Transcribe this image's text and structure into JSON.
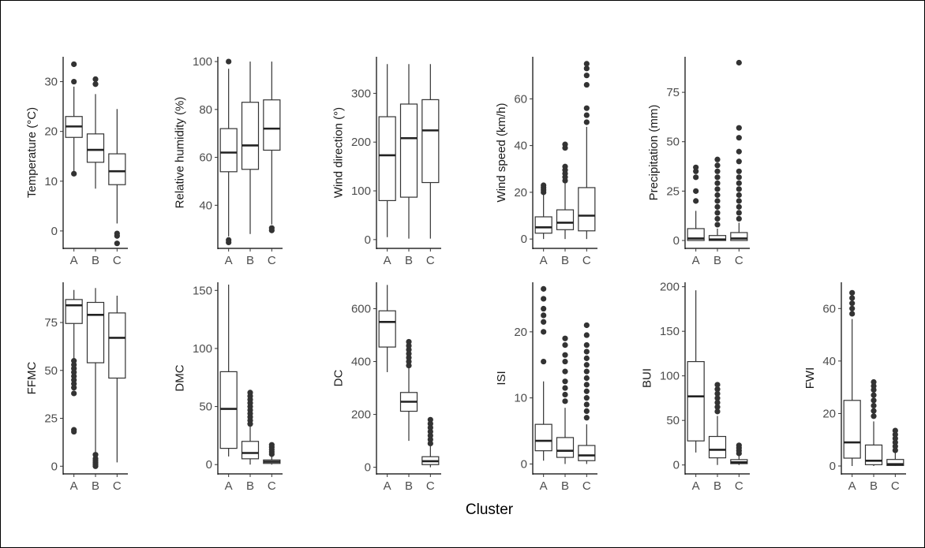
{
  "chart_data": {
    "type": "box",
    "xlabel": "Cluster",
    "categories": [
      "A",
      "B",
      "C"
    ],
    "panels": [
      {
        "ylabel": "Temperature (°C)",
        "yticks": [
          0,
          10,
          20,
          30
        ],
        "ylim": [
          -3.5,
          35
        ],
        "boxes": [
          {
            "q1": 18.8,
            "median": 21.0,
            "q3": 23.0,
            "lo": 11.5,
            "hi": 29.0,
            "outliers": [
              30.0,
              33.5,
              11.5
            ]
          },
          {
            "q1": 13.8,
            "median": 16.3,
            "q3": 19.5,
            "lo": 8.5,
            "hi": 27.5,
            "outliers": [
              29.5,
              30.5
            ]
          },
          {
            "q1": 9.3,
            "median": 12.0,
            "q3": 15.5,
            "lo": 1.5,
            "hi": 24.5,
            "outliers": [
              -0.5,
              -1.0,
              -2.5
            ]
          }
        ]
      },
      {
        "ylabel": "Relative humidity (%)",
        "yticks": [
          40,
          60,
          80,
          100
        ],
        "ylim": [
          22,
          102
        ],
        "boxes": [
          {
            "q1": 54,
            "median": 62,
            "q3": 72,
            "lo": 27,
            "hi": 97,
            "outliers": [
              24.5,
              25.5,
              100
            ]
          },
          {
            "q1": 55,
            "median": 65,
            "q3": 83,
            "lo": 28,
            "hi": 100,
            "outliers": []
          },
          {
            "q1": 63,
            "median": 72,
            "q3": 84,
            "lo": 32,
            "hi": 100,
            "outliers": [
              29.5,
              30.5
            ]
          }
        ]
      },
      {
        "ylabel": "Wind direction (°)",
        "yticks": [
          0,
          100,
          200,
          300
        ],
        "ylim": [
          -18,
          375
        ],
        "boxes": [
          {
            "q1": 80,
            "median": 173,
            "q3": 252,
            "lo": 5,
            "hi": 360,
            "outliers": []
          },
          {
            "q1": 87,
            "median": 208,
            "q3": 278,
            "lo": 2,
            "hi": 360,
            "outliers": []
          },
          {
            "q1": 117,
            "median": 224,
            "q3": 287,
            "lo": 2,
            "hi": 360,
            "outliers": []
          }
        ]
      },
      {
        "ylabel": "Wind speed (km/h)",
        "yticks": [
          0,
          20,
          40,
          60
        ],
        "ylim": [
          -4,
          78
        ],
        "boxes": [
          {
            "q1": 2.5,
            "median": 5,
            "q3": 9.5,
            "lo": 0,
            "hi": 19,
            "outliers": [
              20,
              21,
              22,
              23
            ]
          },
          {
            "q1": 4,
            "median": 7,
            "q3": 12.5,
            "lo": 0,
            "hi": 24,
            "outliers": [
              25,
              26.5,
              28,
              29.5,
              31,
              39,
              40.5
            ]
          },
          {
            "q1": 3.5,
            "median": 10,
            "q3": 22,
            "lo": 0,
            "hi": 48,
            "outliers": [
              50,
              53,
              56,
              66,
              70,
              73,
              75
            ]
          }
        ]
      },
      {
        "ylabel": "Precipitation (mm)",
        "yticks": [
          0,
          25,
          50,
          75
        ],
        "ylim": [
          -4,
          93
        ],
        "boxes": [
          {
            "q1": 0,
            "median": 1,
            "q3": 6,
            "lo": 0,
            "hi": 15,
            "outliers": [
              20,
              25,
              32,
              35,
              37
            ]
          },
          {
            "q1": 0,
            "median": 0.5,
            "q3": 2.5,
            "lo": 0,
            "hi": 6,
            "outliers": [
              8,
              11,
              14,
              17,
              20,
              23,
              26,
              29,
              32,
              35,
              38,
              41
            ]
          },
          {
            "q1": 0,
            "median": 1,
            "q3": 4,
            "lo": 0,
            "hi": 9,
            "outliers": [
              11,
              14,
              17,
              20,
              23,
              26,
              29,
              32,
              35,
              40,
              45,
              52,
              57,
              90
            ]
          }
        ]
      },
      {
        "ylabel": "FFMC",
        "yticks": [
          0,
          25,
          50,
          75
        ],
        "ylim": [
          -4,
          96
        ],
        "boxes": [
          {
            "q1": 74.5,
            "median": 84,
            "q3": 87,
            "lo": 56,
            "hi": 92,
            "outliers": [
              55,
              53,
              51,
              49,
              47,
              45,
              43,
              41,
              38,
              19,
              18
            ]
          },
          {
            "q1": 54,
            "median": 79,
            "q3": 85.5,
            "lo": 7,
            "hi": 93,
            "outliers": [
              6,
              4,
              3,
              2,
              1,
              0
            ]
          },
          {
            "q1": 46,
            "median": 67,
            "q3": 80,
            "lo": 2,
            "hi": 89,
            "outliers": []
          }
        ]
      },
      {
        "ylabel": "DMC",
        "yticks": [
          0,
          50,
          100,
          150
        ],
        "ylim": [
          -8,
          157
        ],
        "boxes": [
          {
            "q1": 14,
            "median": 48,
            "q3": 80,
            "lo": 7,
            "hi": 155,
            "outliers": []
          },
          {
            "q1": 5,
            "median": 10,
            "q3": 20,
            "lo": 0,
            "hi": 33,
            "outliers": [
              35,
              38,
              41,
              44,
              47,
              50,
              53,
              56,
              59,
              62
            ]
          },
          {
            "q1": 1,
            "median": 2.5,
            "q3": 4,
            "lo": 0,
            "hi": 8,
            "outliers": [
              9,
              11,
              13,
              15,
              17
            ]
          }
        ]
      },
      {
        "ylabel": "DC",
        "yticks": [
          0,
          200,
          400,
          600
        ],
        "ylim": [
          -25,
          700
        ],
        "boxes": [
          {
            "q1": 455,
            "median": 550,
            "q3": 592,
            "lo": 360,
            "hi": 690,
            "outliers": []
          },
          {
            "q1": 212,
            "median": 248,
            "q3": 283,
            "lo": 100,
            "hi": 375,
            "outliers": [
              385,
              400,
              415,
              430,
              445,
              460,
              475
            ]
          },
          {
            "q1": 10,
            "median": 23,
            "q3": 40,
            "lo": 0,
            "hi": 80,
            "outliers": [
              90,
              105,
              120,
              135,
              150,
              165,
              180
            ]
          }
        ]
      },
      {
        "ylabel": "ISI",
        "yticks": [
          0,
          10,
          20
        ],
        "ylim": [
          -1.5,
          27.5
        ],
        "boxes": [
          {
            "q1": 2,
            "median": 3.5,
            "q3": 6,
            "lo": 0.5,
            "hi": 12.5,
            "outliers": [
              15.5,
              20,
              21.5,
              22.5,
              23.5,
              25,
              26.5
            ]
          },
          {
            "q1": 1,
            "median": 2,
            "q3": 4,
            "lo": 0,
            "hi": 8.5,
            "outliers": [
              9.5,
              10.5,
              11.5,
              12.5,
              14,
              15.5,
              16.5,
              18,
              19
            ]
          },
          {
            "q1": 0.5,
            "median": 1.3,
            "q3": 2.8,
            "lo": 0,
            "hi": 6,
            "outliers": [
              7,
              8,
              9,
              10,
              11,
              12,
              13,
              14,
              15,
              16,
              17,
              18,
              19.5,
              21
            ]
          }
        ]
      },
      {
        "ylabel": "BUI",
        "yticks": [
          0,
          50,
          100,
          150,
          200
        ],
        "ylim": [
          -10,
          205
        ],
        "boxes": [
          {
            "q1": 27,
            "median": 77,
            "q3": 116,
            "lo": 14,
            "hi": 196,
            "outliers": []
          },
          {
            "q1": 8,
            "median": 17,
            "q3": 32,
            "lo": 0,
            "hi": 55,
            "outliers": [
              60,
              65,
              70,
              75,
              80,
              85,
              90
            ]
          },
          {
            "q1": 1.5,
            "median": 3,
            "q3": 6,
            "lo": 0,
            "hi": 11,
            "outliers": [
              13,
              16,
              19,
              22
            ]
          }
        ]
      },
      {
        "ylabel": "FWI",
        "yticks": [
          0,
          20,
          40,
          60
        ],
        "ylim": [
          -3,
          70
        ],
        "boxes": [
          {
            "q1": 3,
            "median": 9,
            "q3": 25,
            "lo": 0,
            "hi": 56,
            "outliers": [
              58,
              60,
              62,
              64,
              66
            ]
          },
          {
            "q1": 0.5,
            "median": 2,
            "q3": 8,
            "lo": 0,
            "hi": 17,
            "outliers": [
              19,
              21,
              23,
              25,
              27,
              29,
              30.5,
              32
            ]
          },
          {
            "q1": 0.2,
            "median": 0.7,
            "q3": 2.5,
            "lo": 0,
            "hi": 5,
            "outliers": [
              6,
              7.5,
              9,
              10.5,
              12,
              13.5
            ]
          }
        ]
      }
    ]
  }
}
